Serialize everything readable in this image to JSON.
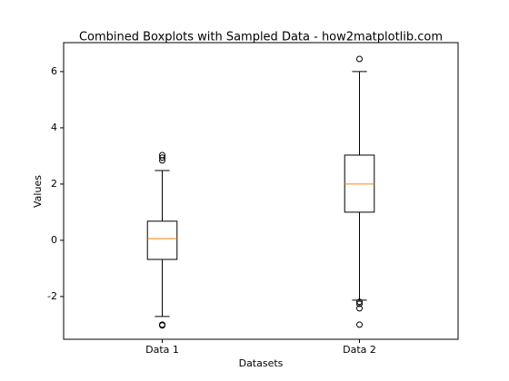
{
  "chart_data": {
    "type": "box",
    "title": "Combined Boxplots with Sampled Data - how2matplotlib.com",
    "x_label": "Datasets",
    "y_label": "Values",
    "categories": [
      "Data 1",
      "Data 2"
    ],
    "boxes": [
      {
        "whislo": -2.71,
        "q1": -0.68,
        "med": 0.06,
        "q3": 0.68,
        "whishi": 2.48,
        "fliers": [
          3.03,
          2.94,
          2.84,
          -3.0,
          -3.03
        ]
      },
      {
        "whislo": -2.13,
        "q1": 1.0,
        "med": 2.0,
        "q3": 3.03,
        "whishi": 6.0,
        "fliers": [
          6.45,
          -2.19,
          -2.26,
          -2.42,
          -3.0
        ]
      }
    ],
    "box_color": "#000000",
    "median_color": "#ff7f0e",
    "ylim": [
      -3.52,
      7.03
    ],
    "yticks": [
      -2,
      0,
      2,
      4,
      6
    ]
  }
}
